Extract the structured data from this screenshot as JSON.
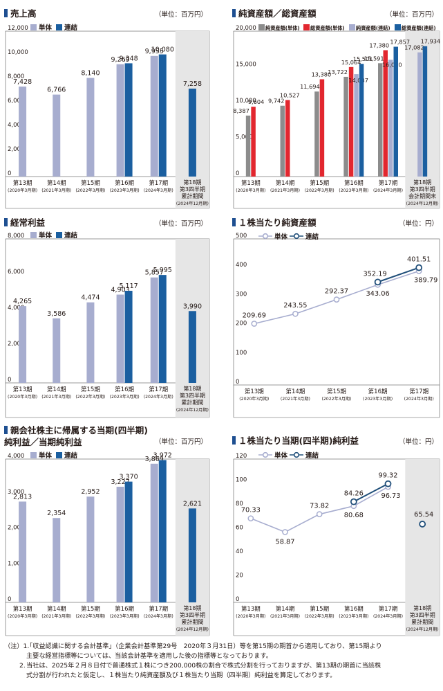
{
  "colors": {
    "tanbetsu": "#a7adcf",
    "renketsu": "#1b5fa0",
    "gray": "#8c8c8c",
    "red": "#e2272f",
    "title_marker": "#1e4f91",
    "shade": "#e6e6e6",
    "line_tanbetsu": "#a7adcf",
    "line_renketsu": "#1f4e79"
  },
  "unit_oku": "（単位：百万円）",
  "unit_yen": "（単位：円）",
  "legend": {
    "tanbetsu": "単体",
    "renketsu": "連結"
  },
  "legend_assets": [
    "純資産額(単体)",
    "総資産額(単体)",
    "純資産額(連結)",
    "総資産額(連結)"
  ],
  "periods": [
    {
      "n": "第13期",
      "d": "(2020年3月期)"
    },
    {
      "n": "第14期",
      "d": "(2021年3月期)"
    },
    {
      "n": "第15期",
      "d": "(2022年3月期)"
    },
    {
      "n": "第16期",
      "d": "(2023年3月期)"
    },
    {
      "n": "第17期",
      "d": "(2024年3月期)"
    }
  ],
  "p18_sales": [
    "第18期",
    "第3四半期",
    "累計期間",
    "(2024年12月期)"
  ],
  "p18_assets": [
    "第18期",
    "第3四半期",
    "会計期間末",
    "(2024年12月期)"
  ],
  "charts": {
    "sales": {
      "title": "売上高",
      "chart_data": {
        "type": "bar",
        "ylim": [
          0,
          12000
        ],
        "yticks": [
          "0",
          "2,000",
          "4,000",
          "6,000",
          "8,000",
          "10,000",
          "12,000"
        ],
        "series": [
          {
            "name": "単体",
            "values": [
              7428,
              6766,
              8140,
              9269,
              9955,
              null
            ],
            "labels": [
              "7,428",
              "6,766",
              "8,140",
              "9,269",
              "9,955",
              ""
            ]
          },
          {
            "name": "連結",
            "values": [
              null,
              null,
              null,
              9348,
              10080,
              7258
            ],
            "labels": [
              "",
              "",
              "",
              "9,348",
              "10,080",
              "7,258"
            ]
          }
        ]
      }
    },
    "assets": {
      "title": "純資産額／総資産額",
      "chart_data": {
        "type": "bar",
        "ylim": [
          0,
          20000
        ],
        "yticks": [
          "0",
          "5,000",
          "10,000",
          "15,000",
          "20,000"
        ],
        "series": [
          {
            "name": "純資産額(単体)",
            "values": [
              8387,
              9742,
              11694,
              13722,
              15591,
              null
            ],
            "labels": [
              "8,387",
              "9,742",
              "11,694",
              "13,722",
              "15,591",
              ""
            ]
          },
          {
            "name": "総資産額(単体)",
            "values": [
              9604,
              10527,
              13380,
              15064,
              17380,
              null
            ],
            "labels": [
              "9,604",
              "10,527",
              "13,380",
              "15,064",
              "17,380",
              ""
            ]
          },
          {
            "name": "純資産額(連結)",
            "values": [
              null,
              null,
              null,
              14087,
              16060,
              17082
            ],
            "labels": [
              "",
              "",
              "",
              "14,087",
              "16,060",
              "17,082"
            ]
          },
          {
            "name": "総資産額(連結)",
            "values": [
              null,
              null,
              null,
              15501,
              17857,
              17934
            ],
            "labels": [
              "",
              "",
              "",
              "15,501",
              "17,857",
              "17,934"
            ]
          }
        ]
      }
    },
    "ordinary": {
      "title": "経常利益",
      "chart_data": {
        "type": "bar",
        "ylim": [
          0,
          8000
        ],
        "yticks": [
          "0",
          "2,000",
          "4,000",
          "6,000",
          "8,000"
        ],
        "series": [
          {
            "name": "単体",
            "values": [
              4265,
              3586,
              4474,
              4903,
              5857,
              null
            ],
            "labels": [
              "4,265",
              "3,586",
              "4,474",
              "4,903",
              "5,857",
              ""
            ]
          },
          {
            "name": "連結",
            "values": [
              null,
              null,
              null,
              5117,
              5995,
              3990
            ],
            "labels": [
              "",
              "",
              "",
              "5,117",
              "5,995",
              "3,990"
            ]
          }
        ]
      }
    },
    "bps": {
      "title": "１株当たり純資産額",
      "chart_data": {
        "type": "line",
        "ylim": [
          0,
          500
        ],
        "yticks": [
          "0",
          "100",
          "200",
          "300",
          "400",
          "500"
        ],
        "series": [
          {
            "name": "単体",
            "values": [
              209.69,
              243.55,
              292.37,
              343.06,
              389.79
            ],
            "labels": [
              "209.69",
              "243.55",
              "292.37",
              "343.06",
              "389.79"
            ]
          },
          {
            "name": "連結",
            "values": [
              null,
              null,
              null,
              352.19,
              401.51
            ],
            "labels": [
              "",
              "",
              "",
              "352.19",
              "401.51"
            ]
          }
        ]
      }
    },
    "netincome": {
      "title1": "親会社株主に帰属する当期(四半期)",
      "title2": "純利益／当期純利益",
      "chart_data": {
        "type": "bar",
        "ylim": [
          0,
          4000
        ],
        "yticks": [
          "0",
          "1,000",
          "2,000",
          "3,000",
          "4,000"
        ],
        "series": [
          {
            "name": "単体",
            "values": [
              2813,
              2354,
              2952,
              3227,
              3869,
              null
            ],
            "labels": [
              "2,813",
              "2,354",
              "2,952",
              "3,227",
              "3,869",
              ""
            ]
          },
          {
            "name": "連結",
            "values": [
              null,
              null,
              null,
              3370,
              3972,
              2621
            ],
            "labels": [
              "",
              "",
              "",
              "3,370",
              "3,972",
              "2,621"
            ]
          }
        ]
      }
    },
    "eps": {
      "title": "１株当たり当期(四半期)純利益",
      "chart_data": {
        "type": "line",
        "ylim": [
          0,
          120
        ],
        "yticks": [
          "0",
          "20",
          "40",
          "60",
          "80",
          "100",
          "120"
        ],
        "series": [
          {
            "name": "単体",
            "values": [
              70.33,
              58.87,
              73.82,
              80.68,
              96.73,
              null
            ],
            "labels": [
              "70.33",
              "58.87",
              "73.82",
              "80.68",
              "96.73",
              ""
            ]
          },
          {
            "name": "連結",
            "values": [
              null,
              null,
              null,
              84.26,
              99.32,
              65.54
            ],
            "labels": [
              "",
              "",
              "",
              "84.26",
              "99.32",
              "65.54"
            ]
          }
        ]
      }
    }
  },
  "notes": {
    "n1_prefix": "（注）1.",
    "n1_line1": "「収益認識に関する会計基準」（企業会計基準第29号　2020年３月31日）等を第15期の期首から適用しており、第15期より",
    "n1_line2": "主要な経営指標等については、当該会計基準を適用した後の指標等となっております。",
    "n2_prefix": "2.",
    "n2_line1": "当社は、2025年２月８日付で普通株式１株につき200,000株の割合で株式分割を行っておりますが、第13期の期首に当該株",
    "n2_line2": "式分割が行われたと仮定し、１株当たり純資産額及び１株当たり当期（四半期）純利益を算定しております。"
  }
}
